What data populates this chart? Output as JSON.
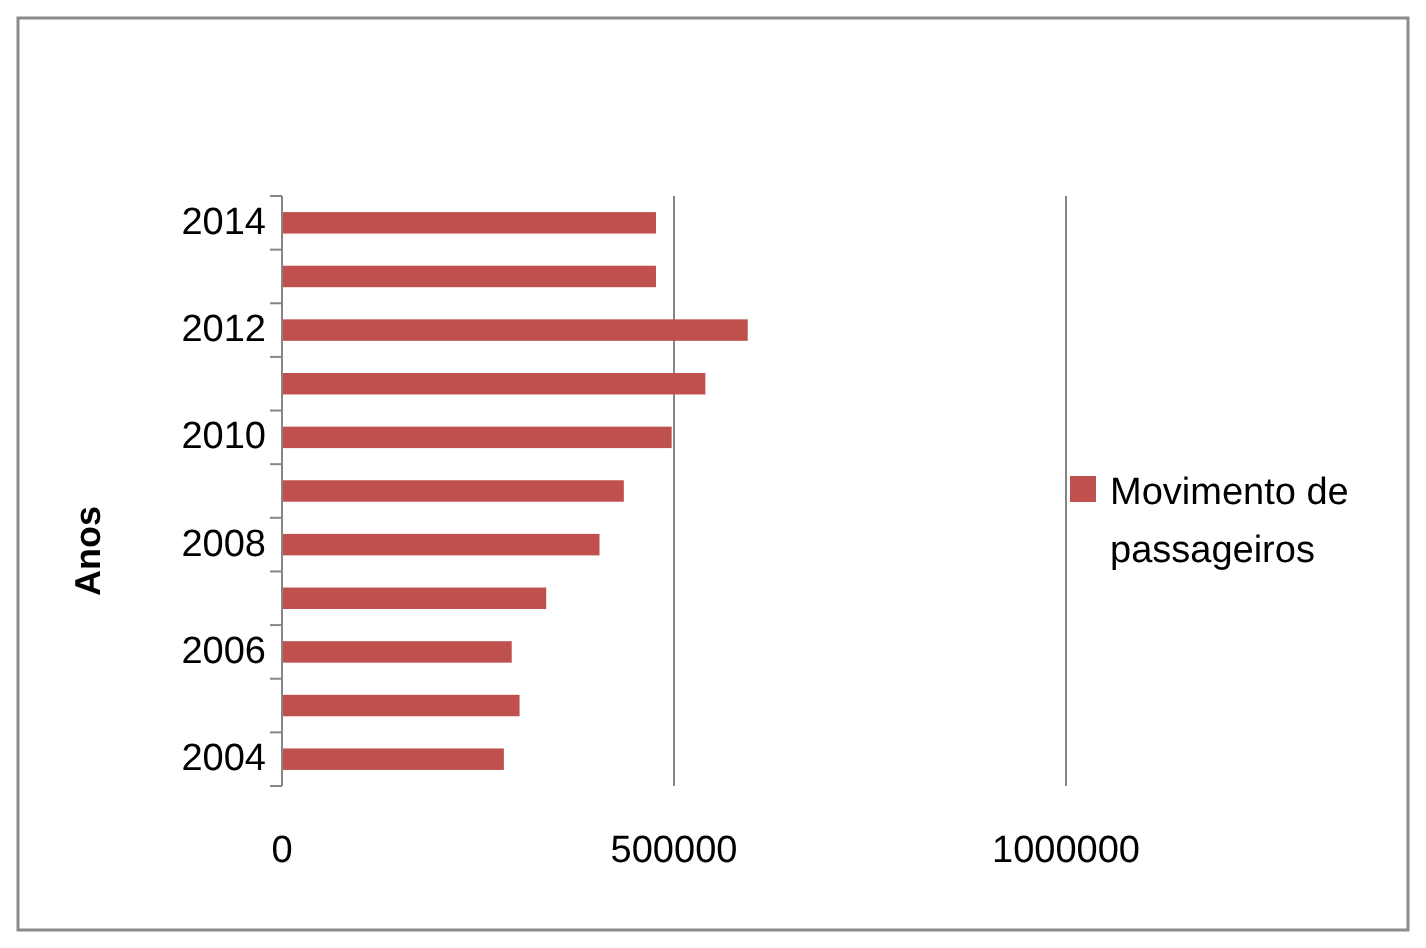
{
  "chart_data": {
    "type": "bar",
    "orientation": "horizontal",
    "ylabel": "Anos",
    "categories": [
      "2014",
      null,
      "2012",
      null,
      "2010",
      null,
      "2008",
      null,
      "2006",
      null,
      "2004"
    ],
    "series": [
      {
        "name": "Movimento de passageiros",
        "color": "#c0504d",
        "values": [
          477000,
          477000,
          594000,
          540000,
          497000,
          436000,
          405000,
          337000,
          293000,
          303000,
          283000
        ]
      }
    ],
    "xlim": [
      0,
      1000000
    ],
    "xticks": [
      0,
      500000,
      1000000
    ],
    "grid": "x",
    "legend": "right"
  }
}
